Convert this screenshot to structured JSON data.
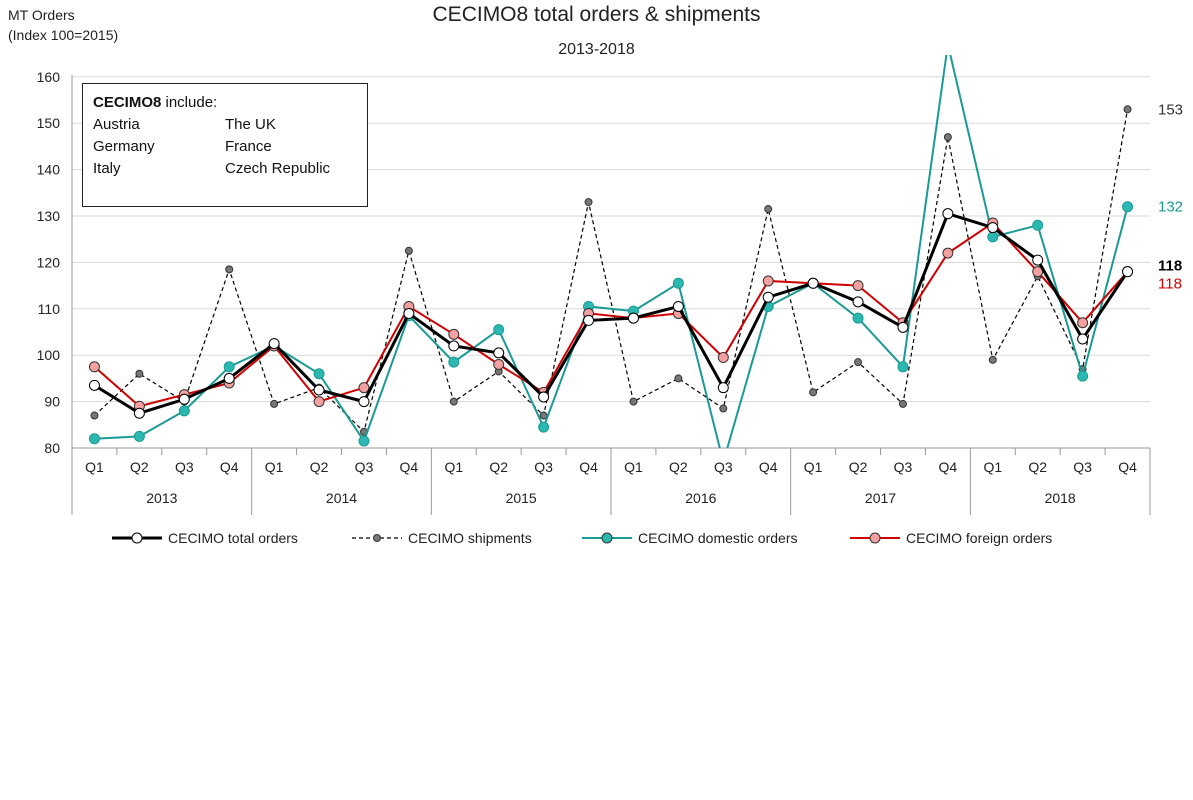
{
  "chart_data": {
    "type": "line",
    "title": "CECIMO8 total orders & shipments",
    "subtitle": "2013-2018",
    "ylabel": "MT Orders\n(Index 100=2015)",
    "ylabel_lines": [
      "MT Orders",
      "(Index 100=2015)"
    ],
    "ylim": [
      80,
      165
    ],
    "yticks": [
      80,
      90,
      100,
      110,
      120,
      130,
      140,
      150,
      160
    ],
    "quarters": [
      "Q1",
      "Q2",
      "Q3",
      "Q4"
    ],
    "years": [
      "2013",
      "2014",
      "2015",
      "2016",
      "2017",
      "2018"
    ],
    "grid": true,
    "legend_position": "bottom",
    "series": [
      {
        "name": "CECIMO total orders",
        "color": "#000000",
        "marker_fill": "#ffffff",
        "dashed": false,
        "end_label": "118",
        "values": [
          93.5,
          87.5,
          90.5,
          95,
          102.5,
          92.5,
          90,
          109,
          102,
          100.5,
          91,
          107.5,
          108,
          110.5,
          93,
          112.5,
          115.5,
          111.5,
          106,
          130.5,
          127.5,
          120.5,
          103.5,
          118
        ]
      },
      {
        "name": "CECIMO shipments",
        "color": "#000000",
        "marker_fill": "#777777",
        "dashed": true,
        "end_label": "153",
        "values": [
          87,
          96,
          90,
          118.5,
          89.5,
          93,
          83.5,
          122.5,
          90,
          96.5,
          87,
          133,
          90,
          95,
          88.5,
          131.5,
          92,
          98.5,
          89.5,
          147,
          99,
          117,
          97,
          153
        ]
      },
      {
        "name": "CECIMO domestic orders",
        "color": "#1a9a95",
        "marker_fill": "#2cb8b0",
        "dashed": false,
        "end_label": "132",
        "values": [
          82,
          82.5,
          88,
          97.5,
          102,
          96,
          81.5,
          108.5,
          98.5,
          105.5,
          84.5,
          110.5,
          109.5,
          115.5,
          77,
          110.5,
          115.5,
          108,
          97.5,
          167,
          125.5,
          128,
          95.5,
          132
        ]
      },
      {
        "name": "CECIMO foreign orders",
        "color": "#d00000",
        "marker_fill": "#f4a0a0",
        "dashed": false,
        "end_label": "118",
        "values": [
          97.5,
          89,
          91.5,
          94,
          102,
          90,
          93,
          110.5,
          104.5,
          98,
          92,
          109,
          108,
          109,
          99.5,
          116,
          115.5,
          115,
          107,
          122,
          128.5,
          118,
          107,
          118
        ]
      }
    ],
    "annotation": {
      "heading": "CECIMO8",
      "heading_suffix": " include:",
      "countries": [
        [
          "Austria",
          "The UK"
        ],
        [
          "Germany",
          "France"
        ],
        [
          "Italy",
          "Czech Republic"
        ]
      ]
    }
  }
}
